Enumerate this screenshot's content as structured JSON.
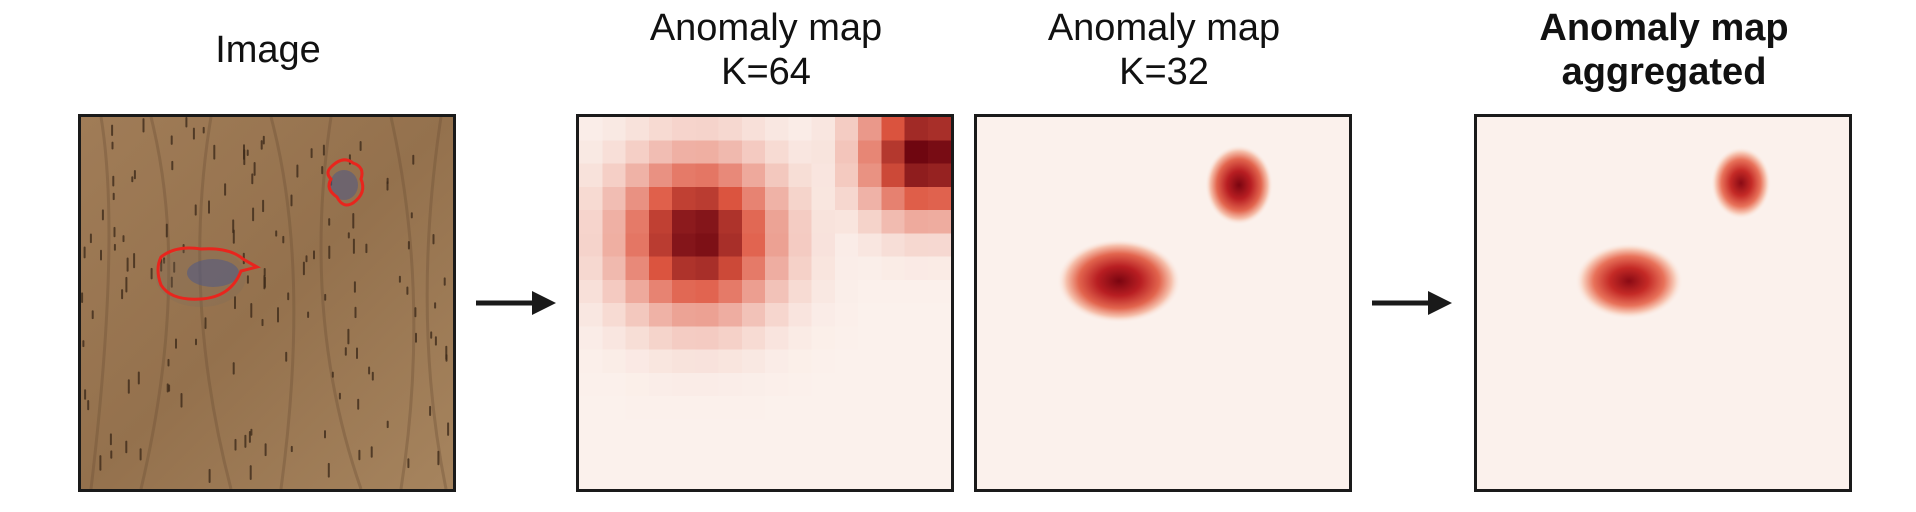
{
  "panels": [
    {
      "title_line1": "Image",
      "title_line2": ""
    },
    {
      "title_line1": "Anomaly map",
      "title_line2": "K=64"
    },
    {
      "title_line1": "Anomaly map",
      "title_line2": "K=32"
    },
    {
      "title_line1": "Anomaly map",
      "title_line2": "aggregated"
    }
  ],
  "colors": {
    "wood": "#9c7a55",
    "anomaly_outline": "#e8251d",
    "heat_low": "#fbf1ec",
    "heat_high": "#67000d",
    "frame": "#1a1a1a"
  }
}
